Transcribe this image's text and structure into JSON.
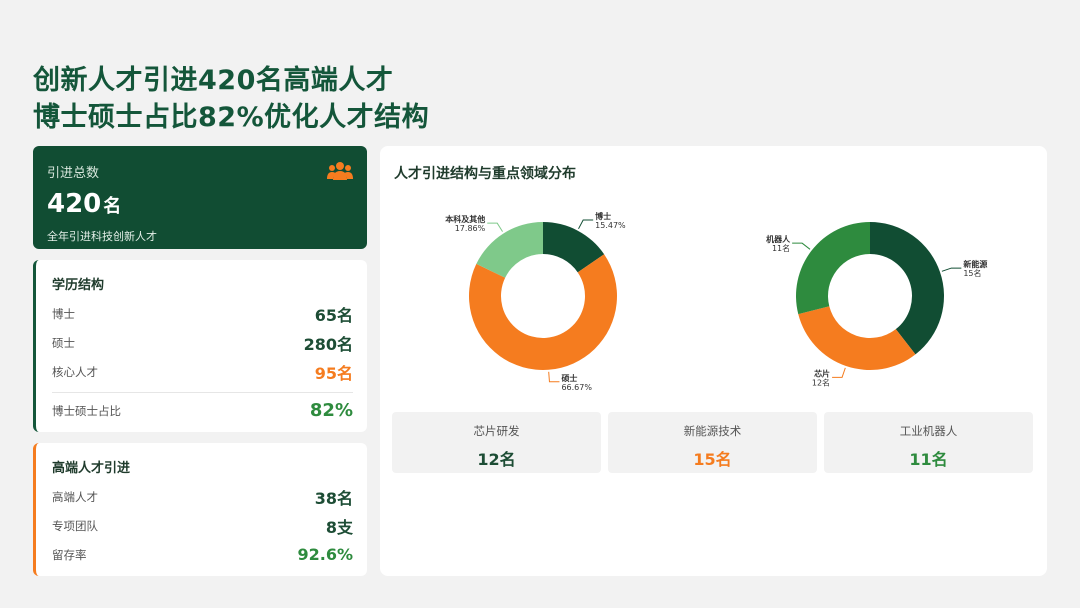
{
  "headline": {
    "line1": "创新人才引进420名高端人才",
    "line2": "博士硕士占比82%优化人才结构"
  },
  "total_card": {
    "label": "引进总数",
    "value": "420",
    "unit": "名",
    "sub": "全年引进科技创新人才",
    "icon": "people-icon"
  },
  "education": {
    "title": "学历结构",
    "rows": [
      {
        "label": "博士",
        "value": "65名"
      },
      {
        "label": "硕士",
        "value": "280名"
      },
      {
        "label": "核心人才",
        "value": "95名"
      }
    ],
    "ratio": {
      "label": "博士硕士占比",
      "value": "82%"
    }
  },
  "high_end": {
    "title": "高端人才引进",
    "rows": [
      {
        "label": "高端人才",
        "value": "38名"
      },
      {
        "label": "专项团队",
        "value": "8支"
      },
      {
        "label": "留存率",
        "value": "92.6%"
      }
    ]
  },
  "panel": {
    "title": "人才引进结构与重点领域分布"
  },
  "chart_data": [
    {
      "type": "pie",
      "donut": true,
      "slices": [
        {
          "label": "博士",
          "value": 15.47,
          "display": "15.47%",
          "color": "#114d33"
        },
        {
          "label": "硕士",
          "value": 66.67,
          "display": "66.67%",
          "color": "#f57c1f"
        },
        {
          "label": "本科及其他",
          "value": 17.86,
          "display": "17.86%",
          "color": "#7fc98a"
        }
      ]
    },
    {
      "type": "pie",
      "donut": true,
      "slices": [
        {
          "label": "新能源",
          "value": 15,
          "display": "15名",
          "color": "#114d33"
        },
        {
          "label": "芯片",
          "value": 12,
          "display": "12名",
          "color": "#f57c1f"
        },
        {
          "label": "机器人",
          "value": 11,
          "display": "11名",
          "color": "#2e8b3e"
        }
      ]
    }
  ],
  "tiles": [
    {
      "label": "芯片研发",
      "value": "12名"
    },
    {
      "label": "新能源技术",
      "value": "15名"
    },
    {
      "label": "工业机器人",
      "value": "11名"
    }
  ]
}
